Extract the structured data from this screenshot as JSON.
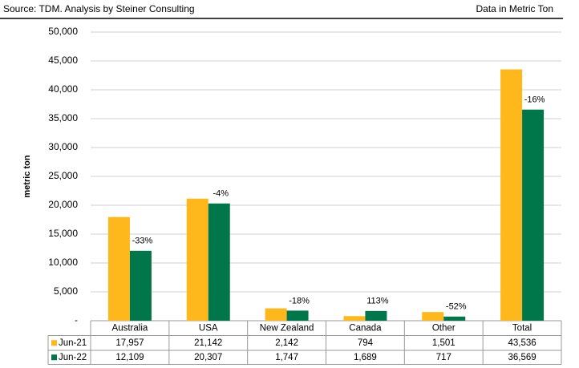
{
  "chart_data": {
    "type": "bar",
    "source": "Source: TDM.  Analysis by Steiner Consulting",
    "note": "Data in Metric Ton",
    "y_label": "metric ton",
    "categories": [
      "Australia",
      "USA",
      "New Zealand",
      "Canada",
      "Other",
      "Total"
    ],
    "series": [
      {
        "name": "Jun-21",
        "color": "#ffb81c",
        "values": [
          17957,
          21142,
          2142,
          794,
          1501,
          43536
        ],
        "value_labels": [
          "17,957",
          "21,142",
          "2,142",
          "794",
          "1,501",
          "43,536"
        ]
      },
      {
        "name": "Jun-22",
        "color": "#00774a",
        "values": [
          12109,
          20307,
          1747,
          1689,
          717,
          36569
        ],
        "value_labels": [
          "12,109",
          "20,307",
          "1,747",
          "1,689",
          "717",
          "36,569"
        ]
      }
    ],
    "changes": [
      -33,
      -4,
      -18,
      113,
      -52,
      -16
    ],
    "change_labels": [
      "-33%",
      "-4%",
      "-18%",
      "113%",
      "-52%",
      "-16%"
    ],
    "ylim": [
      0,
      50000
    ],
    "yticks": [
      {
        "value": 0,
        "label": "-"
      },
      {
        "value": 5000,
        "label": "5,000"
      },
      {
        "value": 10000,
        "label": "10,000"
      },
      {
        "value": 15000,
        "label": "15,000"
      },
      {
        "value": 20000,
        "label": "20,000"
      },
      {
        "value": 25000,
        "label": "25,000"
      },
      {
        "value": 30000,
        "label": "30,000"
      },
      {
        "value": 35000,
        "label": "35,000"
      },
      {
        "value": 40000,
        "label": "40,000"
      },
      {
        "value": 45000,
        "label": "45,000"
      },
      {
        "value": 50000,
        "label": "50,000"
      }
    ],
    "grid": true
  }
}
